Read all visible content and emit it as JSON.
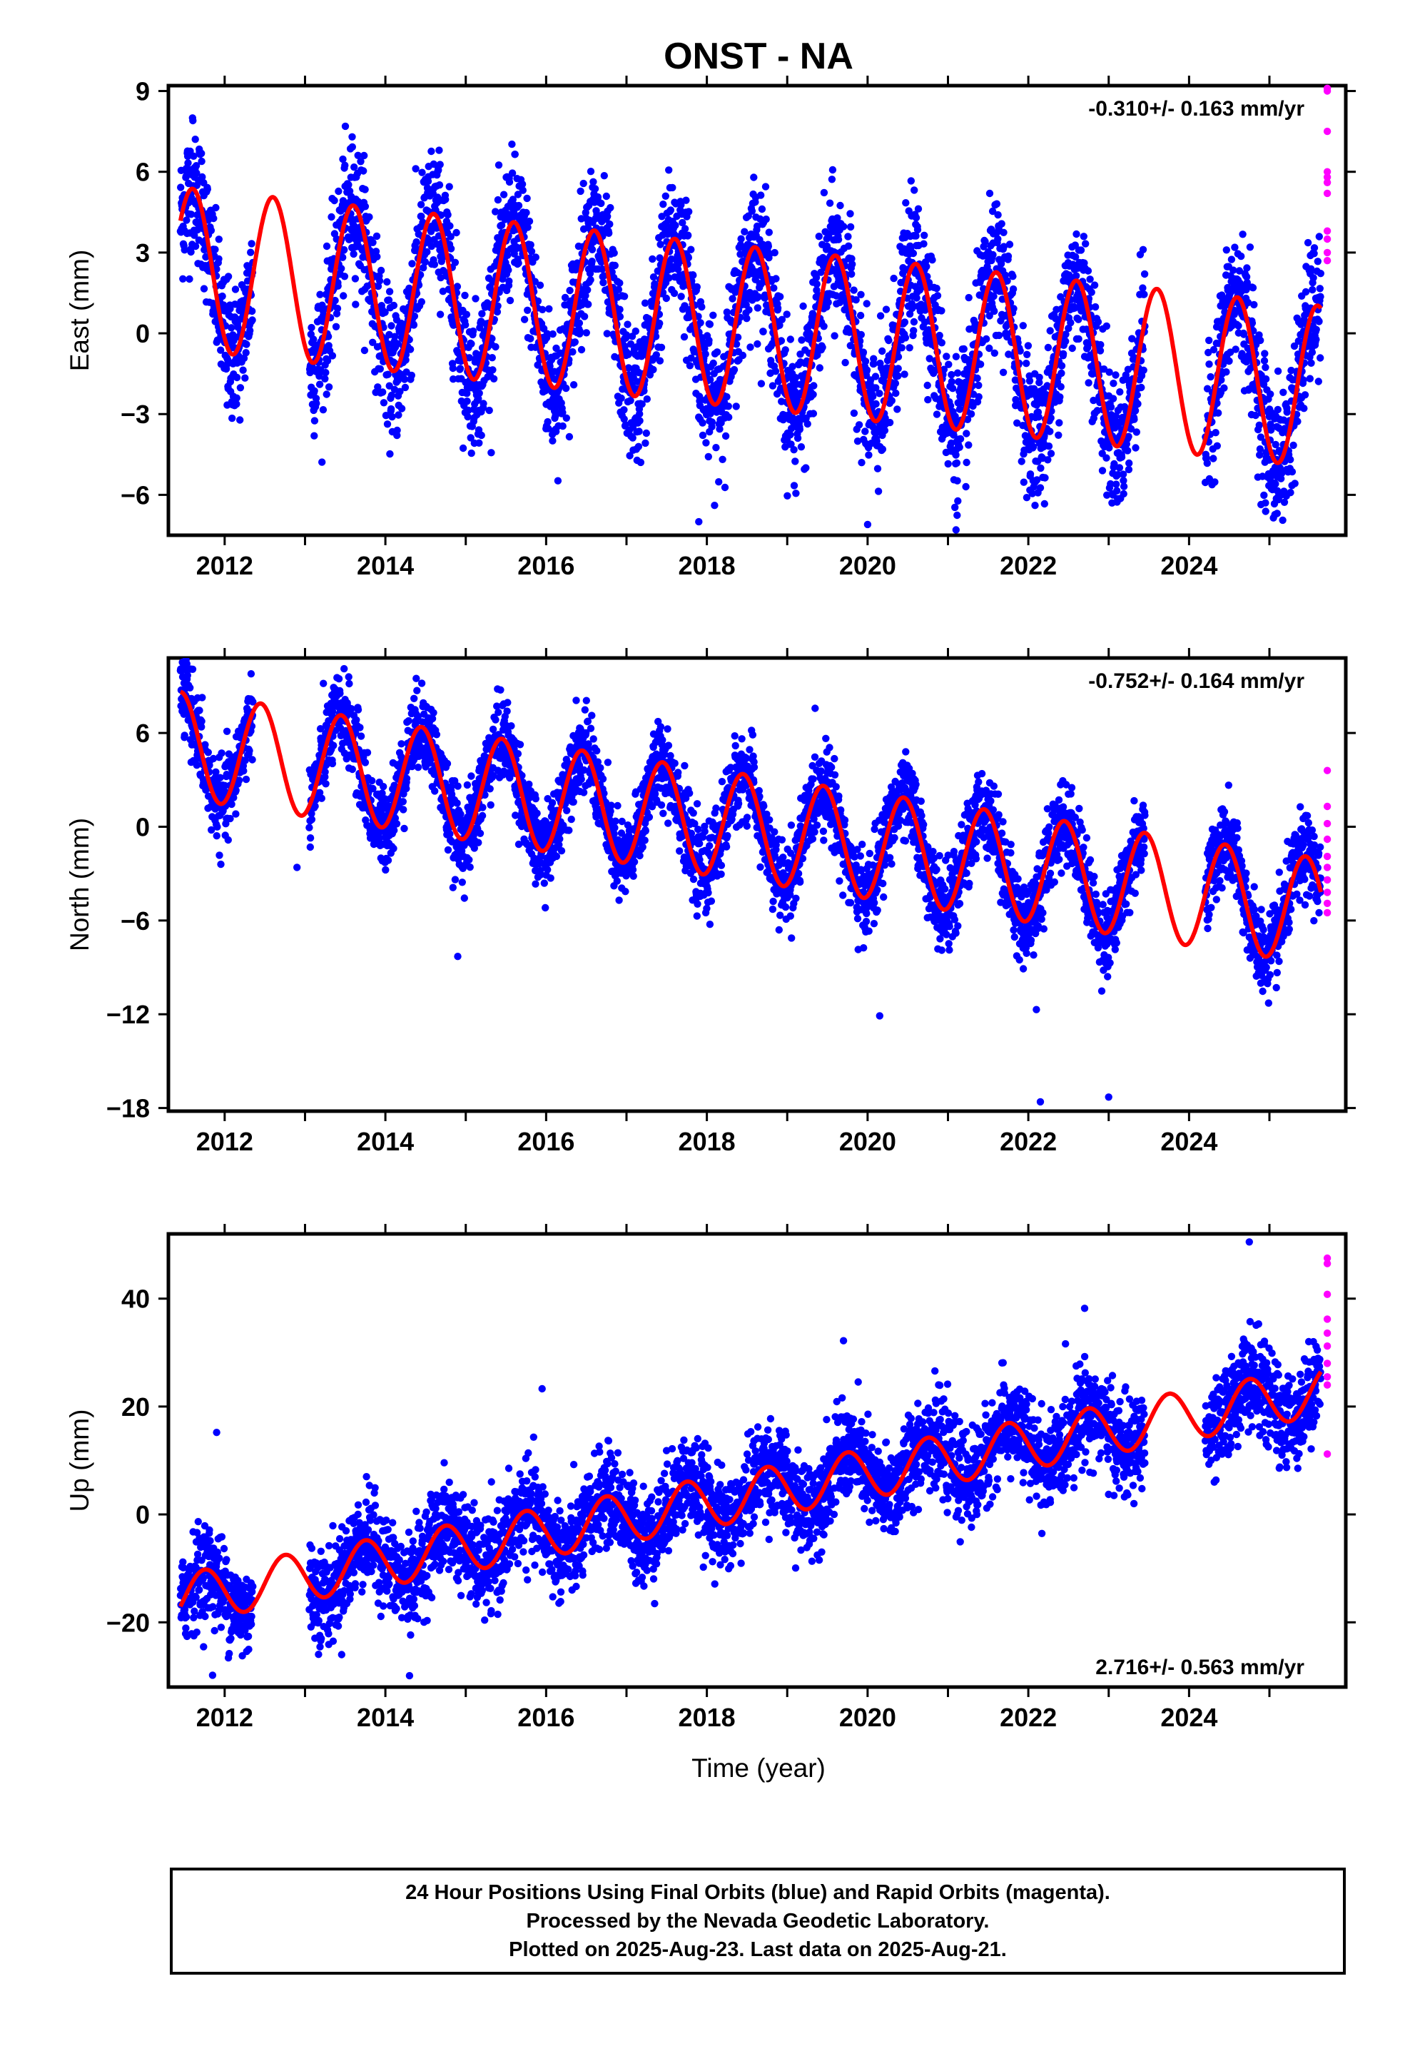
{
  "title": "ONST - NA",
  "colors": {
    "final_orbits": "#0000ff",
    "rapid_orbits": "#ff00ff",
    "model": "#ff0000",
    "axes": "#000000"
  },
  "x_axis": {
    "label": "Time (year)",
    "ticks": [
      "2012",
      "2014",
      "2016",
      "2018",
      "2020",
      "2022",
      "2024"
    ]
  },
  "footer": {
    "line1": "24 Hour Positions Using Final Orbits (blue) and Rapid Orbits (magenta).",
    "line2": "Processed by the Nevada Geodetic Laboratory.",
    "line3": "Plotted on 2025-Aug-23. Last data on 2025-Aug-21."
  },
  "chart_data": [
    {
      "type": "scatter",
      "panel": "east",
      "ylabel": "East (mm)",
      "ylim": [
        -7.5,
        9.2
      ],
      "xlim": [
        2011.3,
        2025.95
      ],
      "yticks": [
        -6,
        -3,
        0,
        3,
        6,
        9
      ],
      "rate": "-0.310+/- 0.163 mm/yr",
      "rate_position": "top-right",
      "model": {
        "intercept_2011_5": 2.4,
        "slope": -0.31,
        "annual_amplitude": 3.0,
        "peak_phase": 0.6
      },
      "data_start": 2011.45,
      "data_end": 2025.64,
      "gaps": [
        [
          2012.35,
          2013.05
        ],
        [
          2023.45,
          2024.2
        ]
      ],
      "noise_sd": 1.25,
      "rapid_orbits": [
        9.1,
        9.0,
        7.5,
        6.0,
        5.8,
        5.6,
        5.2,
        3.8,
        3.5,
        3.0,
        2.7
      ],
      "outliers": [
        [
          2017.9,
          -7.0
        ],
        [
          2020.0,
          -7.1
        ],
        [
          2021.1,
          -7.3
        ],
        [
          2024.95,
          -6.3
        ],
        [
          2011.6,
          8.0
        ]
      ]
    },
    {
      "type": "scatter",
      "panel": "north",
      "ylabel": "North (mm)",
      "ylim": [
        -18.2,
        10.8
      ],
      "xlim": [
        2011.3,
        2025.95
      ],
      "yticks": [
        -18,
        -12,
        -6,
        0,
        6
      ],
      "rate": "-0.752+/- 0.164 mm/yr",
      "rate_position": "top-right",
      "model": {
        "intercept_2011_5": 5.2,
        "slope": -0.752,
        "annual_amplitude": 3.4,
        "peak_phase": 0.45
      },
      "data_start": 2011.45,
      "data_end": 2025.64,
      "gaps": [
        [
          2012.35,
          2013.05
        ],
        [
          2023.45,
          2024.2
        ]
      ],
      "noise_sd": 1.3,
      "rapid_orbits": [
        3.6,
        1.3,
        0.2,
        -0.8,
        -1.9,
        -2.6,
        -3.4,
        -4.2,
        -4.9,
        -5.5
      ],
      "outliers": [
        [
          2014.9,
          -8.3
        ],
        [
          2020.15,
          -12.1
        ],
        [
          2022.1,
          -11.7
        ],
        [
          2022.15,
          -17.6
        ],
        [
          2023.0,
          -17.3
        ],
        [
          2012.9,
          -2.6
        ]
      ]
    },
    {
      "type": "scatter",
      "panel": "up",
      "ylabel": "Up (mm)",
      "ylim": [
        -32,
        52
      ],
      "xlim": [
        2011.3,
        2025.95
      ],
      "yticks": [
        -20,
        0,
        20,
        40
      ],
      "rate": "2.716+/- 0.563 mm/yr",
      "rate_position": "bottom-right",
      "model": {
        "intercept_2011_5": -15.5,
        "slope": 2.716,
        "annual_amplitude": 4.6,
        "peak_phase": 0.75
      },
      "data_start": 2011.45,
      "data_end": 2025.64,
      "gaps": [
        [
          2012.35,
          2013.05
        ],
        [
          2023.45,
          2024.2
        ]
      ],
      "noise_sd": 4.3,
      "rapid_orbits": [
        47.5,
        46.5,
        40.8,
        36.2,
        33.6,
        31.2,
        28.0,
        25.5,
        24.0,
        11.2
      ],
      "outliers": [
        [
          2011.9,
          15.2
        ],
        [
          2015.95,
          23.3
        ],
        [
          2019.7,
          32.2
        ],
        [
          2022.7,
          38.2
        ],
        [
          2024.75,
          50.5
        ],
        [
          2011.85,
          -29.8
        ],
        [
          2014.3,
          -29.9
        ]
      ]
    }
  ]
}
